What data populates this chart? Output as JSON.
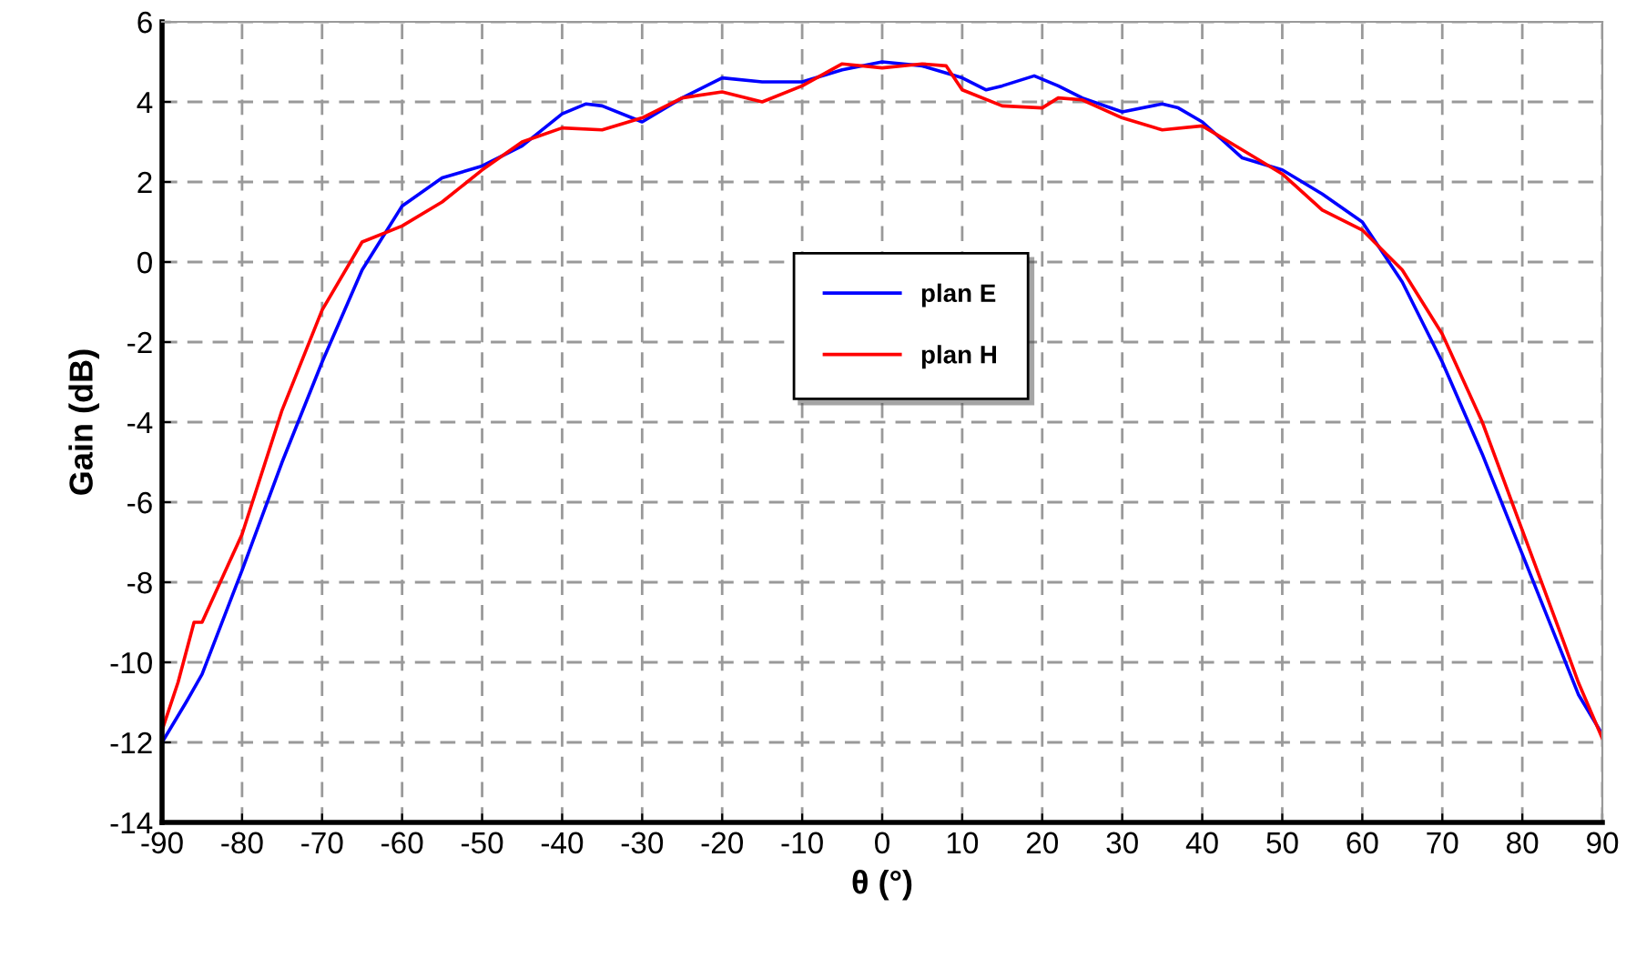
{
  "chart_data": {
    "type": "line",
    "xlabel": "θ (°)",
    "ylabel": "Gain (dB)",
    "xlim": [
      -90,
      90
    ],
    "xticks": [
      -90,
      -80,
      -70,
      -60,
      -50,
      -40,
      -30,
      -20,
      -10,
      0,
      10,
      20,
      30,
      40,
      50,
      60,
      70,
      80,
      90
    ],
    "ylim": [
      -14,
      6
    ],
    "yticks": [
      -14,
      -12,
      -10,
      -8,
      -6,
      -4,
      -2,
      0,
      2,
      4,
      6
    ],
    "grid": true,
    "legend": "center",
    "line_style": "solid",
    "marker": "none",
    "series": [
      {
        "name": "plan E",
        "color": "#0000ff",
        "x": [
          -90,
          -87,
          -85,
          -80,
          -75,
          -70,
          -65,
          -60,
          -55,
          -50,
          -45,
          -40,
          -37,
          -35,
          -30,
          -25,
          -20,
          -15,
          -10,
          -5,
          0,
          5,
          10,
          13,
          15,
          19,
          22,
          25,
          30,
          35,
          37,
          40,
          45,
          50,
          55,
          60,
          65,
          70,
          75,
          80,
          85,
          87,
          90
        ],
        "values": [
          -12,
          -11,
          -10.3,
          -7.7,
          -5,
          -2.5,
          -0.2,
          1.4,
          2.1,
          2.4,
          2.9,
          3.7,
          3.95,
          3.9,
          3.5,
          4.1,
          4.6,
          4.5,
          4.5,
          4.8,
          5.0,
          4.9,
          4.6,
          4.3,
          4.4,
          4.65,
          4.4,
          4.1,
          3.75,
          3.95,
          3.85,
          3.5,
          2.6,
          2.3,
          1.7,
          1.0,
          -0.5,
          -2.5,
          -4.8,
          -7.3,
          -9.8,
          -10.8,
          -11.8
        ]
      },
      {
        "name": "plan H",
        "color": "#ff0000",
        "x": [
          -90,
          -88,
          -86,
          -85,
          -80,
          -75,
          -70,
          -65,
          -60,
          -55,
          -50,
          -45,
          -40,
          -35,
          -30,
          -25,
          -20,
          -15,
          -10,
          -5,
          0,
          5,
          8,
          10,
          15,
          20,
          22,
          25,
          30,
          35,
          40,
          45,
          50,
          55,
          60,
          65,
          70,
          75,
          80,
          85,
          87,
          90
        ],
        "values": [
          -11.7,
          -10.5,
          -9,
          -9,
          -6.8,
          -3.7,
          -1.2,
          0.5,
          0.9,
          1.5,
          2.3,
          3.0,
          3.35,
          3.3,
          3.6,
          4.1,
          4.25,
          4.0,
          4.4,
          4.95,
          4.85,
          4.95,
          4.9,
          4.3,
          3.9,
          3.85,
          4.1,
          4.05,
          3.6,
          3.3,
          3.4,
          2.8,
          2.2,
          1.3,
          0.8,
          -0.2,
          -1.8,
          -4.0,
          -6.7,
          -9.4,
          -10.5,
          -11.9
        ]
      }
    ]
  }
}
